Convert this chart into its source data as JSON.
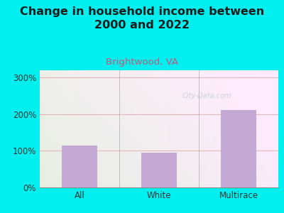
{
  "categories": [
    "All",
    "White",
    "Multirace"
  ],
  "values": [
    115,
    95,
    212
  ],
  "bar_color": "#c4a8d4",
  "title": "Change in household income between\n2000 and 2022",
  "subtitle": "Brightwood, VA",
  "subtitle_color": "#cc5577",
  "title_color": "#1a1a1a",
  "title_fontsize": 11.5,
  "subtitle_fontsize": 9.5,
  "tick_fontsize": 8.5,
  "background_color": "#00f0f0",
  "plot_bg_topleft": "#e8f5e0",
  "plot_bg_topright": "#f8f8f8",
  "plot_bg_bottomleft": "#d8edd0",
  "plot_bg_bottomright": "#f0f8f0",
  "yticks": [
    0,
    100,
    200,
    300
  ],
  "ylim": [
    0,
    320
  ],
  "grid_color": "#e8b0b0",
  "watermark": "City-Data.com",
  "watermark_color": "#b8c8d8"
}
